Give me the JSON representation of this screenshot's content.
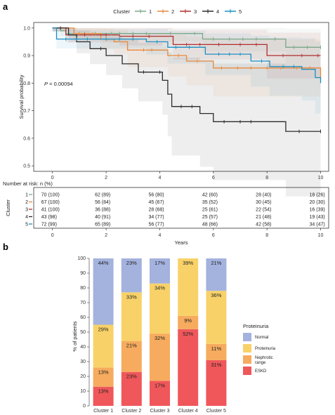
{
  "panels": {
    "a": "a",
    "b": "b"
  },
  "chart_data": [
    {
      "type": "line",
      "subtype": "kaplan-meier",
      "legend_title": "Cluster",
      "legend_position": "top",
      "xlabel": "",
      "ylabel": "Survival probability",
      "xlim": [
        -0.7,
        10.3
      ],
      "ylim": [
        0.48,
        1.02
      ],
      "x_ticks": [
        0,
        2,
        4,
        6,
        8,
        10
      ],
      "y_ticks": [
        0.5,
        0.6,
        0.7,
        0.8,
        0.9,
        1.0
      ],
      "y_tick_labels": [
        "0.5",
        "0.6",
        "0.7",
        "0.8",
        "0.9",
        "1.0"
      ],
      "p_label": "P",
      "p_value": " = 0.00094",
      "grid": false,
      "series": [
        {
          "name": "1",
          "color": "#7aa989",
          "x": [
            0,
            0.3,
            0.5,
            2.0,
            5.6,
            8.7,
            10.0
          ],
          "y": [
            1.0,
            0.99,
            0.98,
            0.98,
            0.96,
            0.93,
            0.93
          ],
          "censor": [
            1.2,
            1.6,
            2.2,
            2.5,
            3.0,
            3.5,
            4.4,
            5.3,
            6.0,
            6.6,
            7.1,
            7.6,
            8.3,
            9.0,
            9.5,
            10.0
          ]
        },
        {
          "name": "2",
          "color": "#e8883a",
          "x": [
            0,
            0.8,
            1.8,
            2.3,
            2.8,
            4.3,
            5.0,
            6.0,
            10.0
          ],
          "y": [
            1.0,
            0.98,
            0.96,
            0.95,
            0.92,
            0.9,
            0.88,
            0.855,
            0.815
          ],
          "censor": [
            1.0,
            1.5,
            2.0,
            3.4,
            3.7,
            4.7,
            5.4,
            6.3,
            6.9,
            7.4,
            8.0,
            8.5,
            9.1,
            9.6
          ]
        },
        {
          "name": "3",
          "color": "#b02e2e",
          "x": [
            0,
            0.5,
            2.5,
            4.5,
            8.0,
            10.0
          ],
          "y": [
            1.0,
            0.975,
            0.97,
            0.94,
            0.9,
            0.9
          ],
          "censor": [
            1.2,
            2.0,
            3.0,
            3.6,
            5.0,
            5.5,
            6.2,
            7.0,
            7.6,
            8.6,
            9.3,
            9.9
          ]
        },
        {
          "name": "4",
          "color": "#2b2b2b",
          "x": [
            0,
            0.6,
            0.9,
            1.4,
            2.0,
            2.6,
            3.2,
            4.1,
            4.3,
            4.45,
            5.5,
            6.0,
            8.7,
            10.0
          ],
          "y": [
            1.0,
            0.975,
            0.95,
            0.925,
            0.9,
            0.87,
            0.84,
            0.81,
            0.76,
            0.715,
            0.69,
            0.66,
            0.625,
            0.625
          ],
          "censor": [
            0.3,
            1.8,
            3.4,
            4.0,
            4.8,
            5.2,
            6.4,
            7.0,
            7.4,
            9.2,
            10.0
          ]
        },
        {
          "name": "5",
          "color": "#1a8fc4",
          "x": [
            0,
            0.15,
            3.5,
            4.3,
            5.7,
            7.4,
            8.1,
            9.3,
            9.8,
            10.0
          ],
          "y": [
            1.0,
            0.96,
            0.95,
            0.93,
            0.905,
            0.88,
            0.86,
            0.85,
            0.82,
            0.8
          ],
          "censor": [
            0.5,
            0.9,
            1.3,
            2.0,
            2.5,
            3.0,
            3.9,
            4.6,
            5.1,
            6.2,
            6.6,
            7.0,
            7.8,
            8.6,
            9.0
          ]
        }
      ]
    },
    {
      "type": "table",
      "title": "Number at risk: n (%)",
      "ylabel": "Cluster",
      "xlabel": "Years",
      "x_ticks": [
        0,
        2,
        4,
        6,
        8,
        10
      ],
      "rows": [
        {
          "cluster": "1",
          "color": "#7aa989",
          "cells": [
            "70 (100)",
            "62 (89)",
            "56 (80)",
            "42 (60)",
            "28 (40)",
            "18 (26)"
          ]
        },
        {
          "cluster": "2",
          "color": "#e8883a",
          "cells": [
            "67 (100)",
            "56 (84)",
            "45 (67)",
            "35 (52)",
            "30 (45)",
            "20 (30)"
          ]
        },
        {
          "cluster": "3",
          "color": "#b02e2e",
          "cells": [
            "41 (100)",
            "36 (88)",
            "28 (68)",
            "25 (61)",
            "22 (54)",
            "16 (39)"
          ]
        },
        {
          "cluster": "4",
          "color": "#2b2b2b",
          "cells": [
            "43 (98)",
            "40 (91)",
            "34 (77)",
            "25 (57)",
            "21 (48)",
            "19 (43)"
          ]
        },
        {
          "cluster": "5",
          "color": "#1a8fc4",
          "cells": [
            "72 (99)",
            "65 (89)",
            "56 (77)",
            "48 (66)",
            "42 (58)",
            "34 (47)"
          ]
        }
      ]
    },
    {
      "type": "bar",
      "stacked": true,
      "xlabel": "",
      "ylabel": "% of patients",
      "ylim": [
        0,
        100
      ],
      "y_ticks": [
        0,
        10,
        20,
        30,
        40,
        50,
        60,
        70,
        80,
        90,
        100
      ],
      "categories": [
        "Cluster 1",
        "Cluster 2",
        "Cluster 3",
        "Cluster 4",
        "Cluster 5"
      ],
      "legend_title": "Proteinuria",
      "legend_position": "right",
      "series": [
        {
          "name": "ESKD",
          "color": "#f0575a",
          "values": [
            13,
            23,
            17,
            52,
            31
          ],
          "labels": [
            "13%",
            "23%",
            "17%",
            "52%",
            "31%"
          ]
        },
        {
          "name": "Nephrotic range",
          "color": "#f6ab5e",
          "values": [
            13,
            21,
            32,
            9,
            11
          ],
          "labels": [
            "13%",
            "21%",
            "32%",
            "9%",
            "11%"
          ]
        },
        {
          "name": "Proteinuria",
          "color": "#f8d269",
          "values": [
            29,
            33,
            34,
            39,
            36
          ],
          "labels": [
            "29%",
            "33%",
            "34%",
            "39%",
            "36%"
          ]
        },
        {
          "name": "Normal",
          "color": "#a4b2de",
          "values": [
            44,
            23,
            17,
            0,
            21
          ],
          "labels": [
            "44%",
            "23%",
            "17%",
            "",
            "21%"
          ]
        }
      ],
      "legend_order": [
        "Normal",
        "Proteinuria",
        "Nephrotic range",
        "ESKD"
      ],
      "legend_labels": {
        "Normal": [
          "Normal"
        ],
        "Proteinuria": [
          "Proteinuria"
        ],
        "Nephrotic range": [
          "Nephrotic",
          "range"
        ],
        "ESKD": [
          "ESKD"
        ]
      }
    }
  ]
}
